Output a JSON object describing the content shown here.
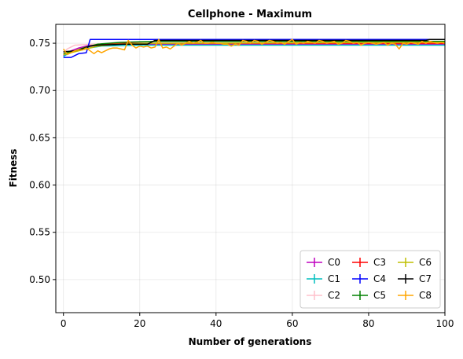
{
  "chart_data": {
    "type": "line",
    "title": "Cellphone - Maximum",
    "xlabel": "Number of generations",
    "ylabel": "Fitness",
    "xlim": [
      -2,
      100
    ],
    "ylim": [
      0.465,
      0.77
    ],
    "xticks": [
      0,
      20,
      40,
      60,
      80,
      100
    ],
    "xtick_labels": [
      "0",
      "20",
      "40",
      "60",
      "80",
      "100"
    ],
    "yticks": [
      0.5,
      0.55,
      0.6,
      0.65,
      0.7,
      0.75
    ],
    "ytick_labels": [
      "0.50",
      "0.55",
      "0.60",
      "0.65",
      "0.70",
      "0.75"
    ],
    "grid": true,
    "legend": {
      "position": "bottom-right",
      "columns": 3
    },
    "series": [
      {
        "name": "C0",
        "color": "#bf00bf",
        "points": [
          [
            0,
            0.737
          ],
          [
            2,
            0.742
          ],
          [
            4,
            0.745
          ],
          [
            7,
            0.748
          ],
          [
            12,
            0.749
          ],
          [
            20,
            0.749
          ],
          [
            100,
            0.749
          ]
        ]
      },
      {
        "name": "C1",
        "color": "#00bfbf",
        "points": [
          [
            0,
            0.736
          ],
          [
            2,
            0.741
          ],
          [
            5,
            0.744
          ],
          [
            10,
            0.747
          ],
          [
            20,
            0.748
          ],
          [
            40,
            0.748
          ],
          [
            100,
            0.748
          ]
        ]
      },
      {
        "name": "C2",
        "color": "#ffc0cb",
        "points": [
          [
            0,
            0.74
          ],
          [
            1,
            0.744
          ],
          [
            3,
            0.748
          ],
          [
            8,
            0.749
          ],
          [
            15,
            0.75
          ],
          [
            100,
            0.75
          ]
        ]
      },
      {
        "name": "C3",
        "color": "#ff0000",
        "points": [
          [
            0,
            0.738
          ],
          [
            3,
            0.742
          ],
          [
            6,
            0.746
          ],
          [
            10,
            0.749
          ],
          [
            18,
            0.75
          ],
          [
            100,
            0.75
          ]
        ]
      },
      {
        "name": "C4",
        "color": "#0000ff",
        "points": [
          [
            0,
            0.735
          ],
          [
            2,
            0.735
          ],
          [
            3,
            0.737
          ],
          [
            4,
            0.739
          ],
          [
            6,
            0.74
          ],
          [
            7,
            0.754
          ],
          [
            100,
            0.754
          ]
        ]
      },
      {
        "name": "C5",
        "color": "#008000",
        "points": [
          [
            0,
            0.739
          ],
          [
            3,
            0.742
          ],
          [
            6,
            0.746
          ],
          [
            9,
            0.749
          ],
          [
            15,
            0.751
          ],
          [
            25,
            0.752
          ],
          [
            100,
            0.752
          ]
        ]
      },
      {
        "name": "C6",
        "color": "#bfbf00",
        "points": [
          [
            0,
            0.738
          ],
          [
            3,
            0.741
          ],
          [
            6,
            0.744
          ],
          [
            9,
            0.747
          ],
          [
            14,
            0.749
          ],
          [
            22,
            0.75
          ],
          [
            100,
            0.751
          ]
        ]
      },
      {
        "name": "C7",
        "color": "#000000",
        "points": [
          [
            0,
            0.741
          ],
          [
            3,
            0.742
          ],
          [
            5,
            0.744
          ],
          [
            7,
            0.747
          ],
          [
            9,
            0.748
          ],
          [
            16,
            0.749
          ],
          [
            22,
            0.749
          ],
          [
            24,
            0.753
          ],
          [
            95,
            0.753
          ],
          [
            96,
            0.754
          ],
          [
            100,
            0.754
          ]
        ]
      },
      {
        "name": "C8",
        "color": "#ffa500",
        "points": [
          [
            0,
            0.744
          ],
          [
            1,
            0.738
          ],
          [
            2,
            0.74
          ],
          [
            3,
            0.742
          ],
          [
            4,
            0.743
          ],
          [
            5,
            0.743
          ],
          [
            6,
            0.745
          ],
          [
            7,
            0.742
          ],
          [
            8,
            0.739
          ],
          [
            9,
            0.742
          ],
          [
            10,
            0.74
          ],
          [
            11,
            0.742
          ],
          [
            12,
            0.744
          ],
          [
            13,
            0.745
          ],
          [
            14,
            0.745
          ],
          [
            15,
            0.744
          ],
          [
            16,
            0.743
          ],
          [
            17,
            0.753
          ],
          [
            18,
            0.748
          ],
          [
            19,
            0.745
          ],
          [
            20,
            0.747
          ],
          [
            21,
            0.746
          ],
          [
            22,
            0.747
          ],
          [
            23,
            0.745
          ],
          [
            24,
            0.746
          ],
          [
            25,
            0.754
          ],
          [
            26,
            0.745
          ],
          [
            27,
            0.746
          ],
          [
            28,
            0.744
          ],
          [
            29,
            0.747
          ],
          [
            30,
            0.75
          ],
          [
            31,
            0.748
          ],
          [
            32,
            0.75
          ],
          [
            33,
            0.752
          ],
          [
            34,
            0.75
          ],
          [
            35,
            0.751
          ],
          [
            36,
            0.753
          ],
          [
            37,
            0.75
          ],
          [
            38,
            0.75
          ],
          [
            39,
            0.751
          ],
          [
            40,
            0.75
          ],
          [
            41,
            0.75
          ],
          [
            42,
            0.749
          ],
          [
            43,
            0.749
          ],
          [
            44,
            0.747
          ],
          [
            45,
            0.749
          ],
          [
            46,
            0.748
          ],
          [
            47,
            0.753
          ],
          [
            48,
            0.752
          ],
          [
            49,
            0.75
          ],
          [
            50,
            0.753
          ],
          [
            51,
            0.752
          ],
          [
            52,
            0.749
          ],
          [
            53,
            0.751
          ],
          [
            54,
            0.753
          ],
          [
            55,
            0.752
          ],
          [
            56,
            0.75
          ],
          [
            57,
            0.751
          ],
          [
            58,
            0.749
          ],
          [
            59,
            0.752
          ],
          [
            60,
            0.754
          ],
          [
            61,
            0.749
          ],
          [
            62,
            0.751
          ],
          [
            63,
            0.75
          ],
          [
            64,
            0.752
          ],
          [
            65,
            0.751
          ],
          [
            66,
            0.75
          ],
          [
            67,
            0.753
          ],
          [
            68,
            0.752
          ],
          [
            69,
            0.75
          ],
          [
            70,
            0.751
          ],
          [
            71,
            0.752
          ],
          [
            72,
            0.749
          ],
          [
            73,
            0.75
          ],
          [
            74,
            0.753
          ],
          [
            75,
            0.752
          ],
          [
            76,
            0.75
          ],
          [
            77,
            0.751
          ],
          [
            78,
            0.748
          ],
          [
            79,
            0.75
          ],
          [
            80,
            0.751
          ],
          [
            81,
            0.75
          ],
          [
            82,
            0.749
          ],
          [
            83,
            0.75
          ],
          [
            84,
            0.751
          ],
          [
            85,
            0.748
          ],
          [
            86,
            0.75
          ],
          [
            87,
            0.749
          ],
          [
            88,
            0.744
          ],
          [
            89,
            0.75
          ],
          [
            90,
            0.749
          ],
          [
            91,
            0.751
          ],
          [
            92,
            0.75
          ],
          [
            93,
            0.749
          ],
          [
            94,
            0.752
          ],
          [
            95,
            0.75
          ],
          [
            96,
            0.752
          ],
          [
            97,
            0.751
          ],
          [
            98,
            0.75
          ],
          [
            99,
            0.751
          ],
          [
            100,
            0.75
          ]
        ]
      }
    ]
  }
}
